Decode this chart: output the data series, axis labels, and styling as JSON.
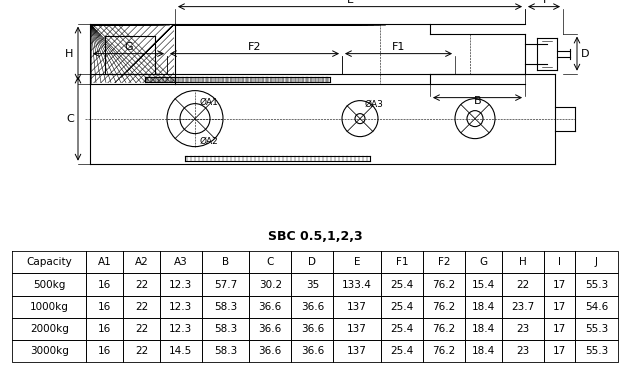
{
  "title": "SBC 0.5,1,2,3",
  "table_headers": [
    "Capacity",
    "A1",
    "A2",
    "A3",
    "B",
    "C",
    "D",
    "E",
    "F1",
    "F2",
    "G",
    "H",
    "I",
    "J"
  ],
  "table_data": [
    [
      "500kg",
      "16",
      "22",
      "12.3",
      "57.7",
      "30.2",
      "35",
      "133.4",
      "25.4",
      "76.2",
      "15.4",
      "22",
      "17",
      "55.3"
    ],
    [
      "1000kg",
      "16",
      "22",
      "12.3",
      "58.3",
      "36.6",
      "36.6",
      "137",
      "25.4",
      "76.2",
      "18.4",
      "23.7",
      "17",
      "54.6"
    ],
    [
      "2000kg",
      "16",
      "22",
      "12.3",
      "58.3",
      "36.6",
      "36.6",
      "137",
      "25.4",
      "76.2",
      "18.4",
      "23",
      "17",
      "55.3"
    ],
    [
      "3000kg",
      "16",
      "22",
      "14.5",
      "58.3",
      "36.6",
      "36.6",
      "137",
      "25.4",
      "76.2",
      "18.4",
      "23",
      "17",
      "55.3"
    ]
  ],
  "bg_color": "#ffffff",
  "line_color": "#000000",
  "table_header_bg": "#ffffff",
  "fig_width": 6.3,
  "fig_height": 3.65,
  "dpi": 100
}
